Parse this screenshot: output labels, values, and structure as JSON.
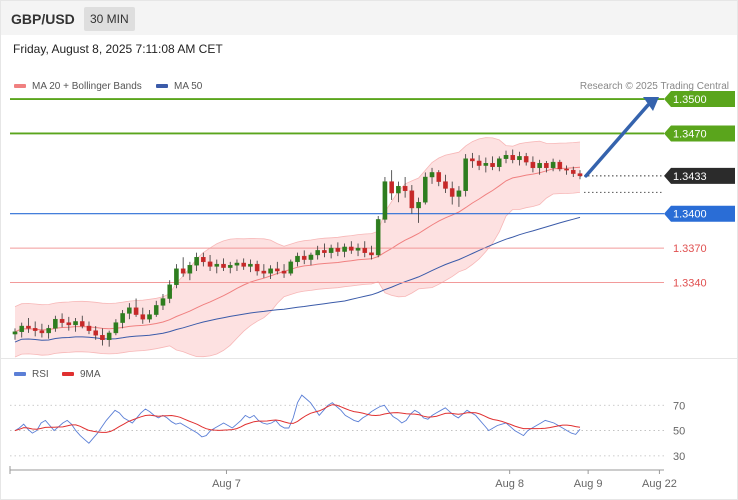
{
  "header": {
    "symbol": "GBP/USD",
    "timeframe": "30 MIN"
  },
  "timestamp": "Friday, August 8, 2025 7:11:08 AM CET",
  "legend": {
    "ma20": "MA 20 + Bollinger Bands",
    "ma50": "MA 50",
    "rsi": "RSI",
    "rsi_ma": "9MA"
  },
  "credit": "Research © 2025 Trading Central",
  "colors": {
    "up": "#2e7d1f",
    "down": "#c62828",
    "bb_fill": "#fddcdc",
    "ma20": "#f08080",
    "ma50": "#3b5ba9",
    "support": "#2a6dd6",
    "resistance": "#5aa51c",
    "red_level": "#e05050",
    "arrow": "#3563ad",
    "rsi": "#5b7fd6",
    "rsi_ma": "#e03030"
  },
  "chart_data": {
    "type": "candlestick",
    "price_axis": {
      "ylim": [
        1.3275,
        1.3555
      ]
    },
    "last_price": {
      "value": 1.3433,
      "label": "1.3433"
    },
    "levels": [
      {
        "value": 1.35,
        "label": "1.3500",
        "kind": "resistance"
      },
      {
        "value": 1.347,
        "label": "1.3470",
        "kind": "resistance"
      },
      {
        "value": 1.34,
        "label": "1.3400",
        "kind": "support"
      },
      {
        "value": 1.337,
        "label": "1.3370",
        "kind": "red"
      },
      {
        "value": 1.334,
        "label": "1.3340",
        "kind": "red"
      }
    ],
    "forecast_arrow": {
      "from": 1.3433,
      "to": 1.35
    },
    "candles": [
      [
        1.3295,
        1.33,
        1.329,
        1.3297
      ],
      [
        1.3297,
        1.3305,
        1.3292,
        1.3302
      ],
      [
        1.3302,
        1.3309,
        1.3296,
        1.33
      ],
      [
        1.33,
        1.3306,
        1.3293,
        1.3298
      ],
      [
        1.3298,
        1.3304,
        1.3292,
        1.3296
      ],
      [
        1.3296,
        1.3303,
        1.3291,
        1.33
      ],
      [
        1.33,
        1.3311,
        1.3297,
        1.3308
      ],
      [
        1.3308,
        1.3313,
        1.3301,
        1.3305
      ],
      [
        1.3305,
        1.331,
        1.3298,
        1.3303
      ],
      [
        1.3303,
        1.3309,
        1.3297,
        1.3306
      ],
      [
        1.3306,
        1.3311,
        1.33,
        1.3302
      ],
      [
        1.3302,
        1.3306,
        1.3295,
        1.3298
      ],
      [
        1.3298,
        1.3302,
        1.329,
        1.3294
      ],
      [
        1.3294,
        1.33,
        1.3285,
        1.329
      ],
      [
        1.329,
        1.3298,
        1.3284,
        1.3296
      ],
      [
        1.3296,
        1.3308,
        1.3294,
        1.3305
      ],
      [
        1.3305,
        1.3316,
        1.33,
        1.3313
      ],
      [
        1.3313,
        1.3322,
        1.3308,
        1.3318
      ],
      [
        1.3318,
        1.3326,
        1.331,
        1.3312
      ],
      [
        1.3312,
        1.3318,
        1.3304,
        1.3308
      ],
      [
        1.3308,
        1.3316,
        1.3305,
        1.3312
      ],
      [
        1.3312,
        1.3324,
        1.331,
        1.332
      ],
      [
        1.332,
        1.333,
        1.3316,
        1.3326
      ],
      [
        1.3326,
        1.3342,
        1.3322,
        1.3338
      ],
      [
        1.3338,
        1.3356,
        1.3335,
        1.3352
      ],
      [
        1.3352,
        1.3362,
        1.3345,
        1.3348
      ],
      [
        1.3348,
        1.3358,
        1.3342,
        1.3355
      ],
      [
        1.3355,
        1.3366,
        1.335,
        1.3362
      ],
      [
        1.3362,
        1.3366,
        1.3354,
        1.3358
      ],
      [
        1.3358,
        1.3364,
        1.335,
        1.3354
      ],
      [
        1.3354,
        1.336,
        1.3348,
        1.3356
      ],
      [
        1.3356,
        1.3361,
        1.335,
        1.3353
      ],
      [
        1.3353,
        1.3358,
        1.3348,
        1.3355
      ],
      [
        1.3355,
        1.336,
        1.335,
        1.3357
      ],
      [
        1.3357,
        1.3361,
        1.3351,
        1.3354
      ],
      [
        1.3354,
        1.336,
        1.3349,
        1.3356
      ],
      [
        1.3356,
        1.3359,
        1.3346,
        1.335
      ],
      [
        1.335,
        1.3356,
        1.3344,
        1.3348
      ],
      [
        1.3348,
        1.3355,
        1.3343,
        1.3352
      ],
      [
        1.3352,
        1.3358,
        1.3347,
        1.335
      ],
      [
        1.335,
        1.3356,
        1.3344,
        1.3348
      ],
      [
        1.3348,
        1.336,
        1.3346,
        1.3358
      ],
      [
        1.3358,
        1.3366,
        1.3354,
        1.3363
      ],
      [
        1.3363,
        1.3368,
        1.3356,
        1.336
      ],
      [
        1.336,
        1.3366,
        1.3355,
        1.3364
      ],
      [
        1.3364,
        1.3372,
        1.336,
        1.3368
      ],
      [
        1.3368,
        1.3374,
        1.3362,
        1.3366
      ],
      [
        1.3366,
        1.3373,
        1.3361,
        1.337
      ],
      [
        1.337,
        1.3375,
        1.3363,
        1.3367
      ],
      [
        1.3367,
        1.3374,
        1.3362,
        1.3371
      ],
      [
        1.3371,
        1.3376,
        1.3365,
        1.3368
      ],
      [
        1.3368,
        1.3374,
        1.3363,
        1.337
      ],
      [
        1.337,
        1.3376,
        1.3362,
        1.3366
      ],
      [
        1.3366,
        1.3372,
        1.336,
        1.3364
      ],
      [
        1.3364,
        1.3398,
        1.3362,
        1.3395
      ],
      [
        1.3395,
        1.3432,
        1.3392,
        1.3428
      ],
      [
        1.3428,
        1.3438,
        1.3412,
        1.3418
      ],
      [
        1.3418,
        1.3428,
        1.341,
        1.3424
      ],
      [
        1.3424,
        1.3432,
        1.3414,
        1.342
      ],
      [
        1.342,
        1.3425,
        1.34,
        1.3405
      ],
      [
        1.3405,
        1.3414,
        1.3392,
        1.341
      ],
      [
        1.341,
        1.3436,
        1.3408,
        1.3432
      ],
      [
        1.3432,
        1.344,
        1.3426,
        1.3436
      ],
      [
        1.3436,
        1.3438,
        1.3424,
        1.3428
      ],
      [
        1.3428,
        1.3434,
        1.3418,
        1.3422
      ],
      [
        1.3422,
        1.3428,
        1.3408,
        1.3415
      ],
      [
        1.3415,
        1.3424,
        1.3406,
        1.342
      ],
      [
        1.342,
        1.3452,
        1.3415,
        1.3448
      ],
      [
        1.3448,
        1.3453,
        1.344,
        1.3446
      ],
      [
        1.3446,
        1.3451,
        1.3438,
        1.3442
      ],
      [
        1.3442,
        1.3449,
        1.3436,
        1.3444
      ],
      [
        1.3444,
        1.345,
        1.3438,
        1.3441
      ],
      [
        1.3441,
        1.345,
        1.3437,
        1.3448
      ],
      [
        1.3448,
        1.3455,
        1.3444,
        1.3451
      ],
      [
        1.3451,
        1.3456,
        1.3444,
        1.3447
      ],
      [
        1.3447,
        1.3454,
        1.3442,
        1.345
      ],
      [
        1.345,
        1.3453,
        1.3442,
        1.3445
      ],
      [
        1.3445,
        1.345,
        1.3436,
        1.344
      ],
      [
        1.344,
        1.3447,
        1.3434,
        1.3444
      ],
      [
        1.3444,
        1.3446,
        1.3436,
        1.344
      ],
      [
        1.344,
        1.3448,
        1.3437,
        1.3445
      ],
      [
        1.3445,
        1.3447,
        1.3437,
        1.3439
      ],
      [
        1.3439,
        1.3442,
        1.3434,
        1.3438
      ],
      [
        1.3438,
        1.3441,
        1.3432,
        1.3435
      ],
      [
        1.3435,
        1.3438,
        1.343,
        1.3433
      ]
    ],
    "rsi": {
      "ylim": [
        22,
        86
      ],
      "ticks": [
        {
          "value": 70,
          "label": "70"
        },
        {
          "value": 50,
          "label": "50"
        },
        {
          "value": 30,
          "label": "30"
        }
      ],
      "values": [
        50,
        52,
        55,
        51,
        48,
        50,
        56,
        58,
        54,
        50,
        53,
        56,
        58,
        55,
        50,
        46,
        43,
        40,
        44,
        48,
        53,
        58,
        62,
        66,
        64,
        60,
        58,
        56,
        60,
        64,
        67,
        65,
        62,
        60,
        62,
        60,
        57,
        55,
        56,
        54,
        52,
        50,
        48,
        45,
        46,
        50,
        52,
        54,
        56,
        54,
        52,
        55,
        58,
        62,
        60,
        62,
        58,
        56,
        55,
        56,
        58,
        54,
        52,
        52,
        60,
        72,
        78,
        75,
        72,
        67,
        62,
        66,
        70,
        72,
        69,
        66,
        62,
        60,
        58,
        57,
        60,
        62,
        65,
        67,
        69,
        70,
        65,
        61,
        59,
        56,
        58,
        63,
        66,
        64,
        60,
        59,
        62,
        64,
        66,
        68,
        65,
        62,
        60,
        63,
        66,
        64,
        62,
        58,
        54,
        50,
        52,
        54,
        55,
        56,
        53,
        50,
        48,
        46,
        50,
        52,
        54,
        56,
        58,
        57,
        56,
        54,
        52,
        50,
        48,
        47,
        51
      ]
    },
    "x_axis": {
      "ticks": [
        {
          "label": "Aug 7",
          "pos": 0.331
        },
        {
          "label": "Aug 8",
          "pos": 0.764
        },
        {
          "label": "Aug 9",
          "pos": 0.884
        },
        {
          "label": "Aug 22",
          "pos": 0.993
        }
      ]
    }
  }
}
